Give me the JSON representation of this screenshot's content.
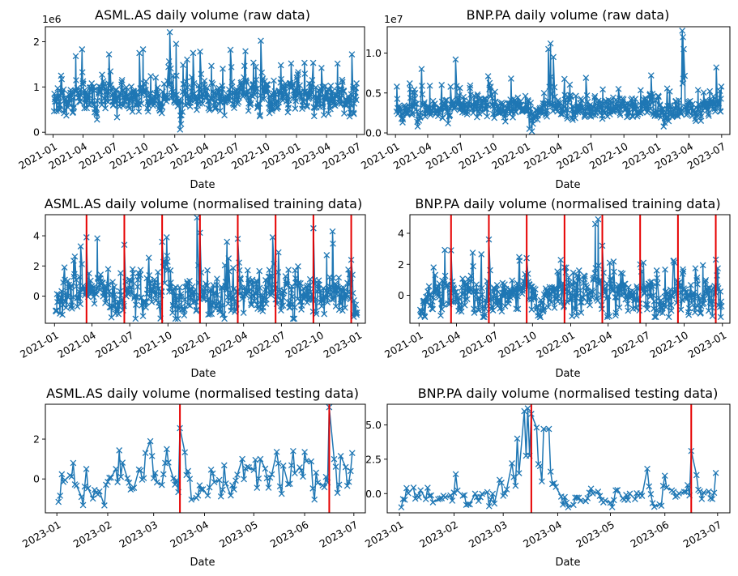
{
  "chart_data": [
    {
      "id": "p0",
      "type": "line",
      "title": "ASML.AS daily volume (raw data)",
      "xlabel": "Date",
      "ylabel": "",
      "multiplier": "1e6",
      "xlim": [
        "2020-12-09",
        "2023-07-24"
      ],
      "ylim": [
        -50000,
        2330000
      ],
      "yticks": [
        {
          "v": 0,
          "label": "0"
        },
        {
          "v": 1000000,
          "label": "1"
        },
        {
          "v": 2000000,
          "label": "2"
        }
      ],
      "xticks": [
        {
          "d": "2021-01-01",
          "label": "2021-01"
        },
        {
          "d": "2021-04-01",
          "label": "2021-04"
        },
        {
          "d": "2021-07-01",
          "label": "2021-07"
        },
        {
          "d": "2021-10-01",
          "label": "2021-10"
        },
        {
          "d": "2022-01-01",
          "label": "2022-01"
        },
        {
          "d": "2022-04-01",
          "label": "2022-04"
        },
        {
          "d": "2022-07-01",
          "label": "2022-07"
        },
        {
          "d": "2022-10-01",
          "label": "2022-10"
        },
        {
          "d": "2023-01-01",
          "label": "2023-01"
        },
        {
          "d": "2023-04-01",
          "label": "2023-04"
        },
        {
          "d": "2023-07-01",
          "label": "2023-07"
        }
      ],
      "vlines": [],
      "series": {
        "start": "2021-01-04",
        "end": "2023-06-30",
        "base": 750000,
        "noise": 200000,
        "floor": 280000,
        "ceil": 2250000,
        "seed": 11,
        "points": [
          {
            "d": "2021-01-05",
            "v": 850000
          },
          {
            "d": "2021-01-25",
            "v": 1250000
          },
          {
            "d": "2021-02-03",
            "v": 420000
          },
          {
            "d": "2021-03-10",
            "v": 1680000
          },
          {
            "d": "2021-03-29",
            "v": 1830000
          },
          {
            "d": "2021-05-28",
            "v": 1270000
          },
          {
            "d": "2021-06-18",
            "v": 1720000
          },
          {
            "d": "2021-07-12",
            "v": 330000
          },
          {
            "d": "2021-07-25",
            "v": 1050000
          },
          {
            "d": "2021-09-17",
            "v": 1750000
          },
          {
            "d": "2021-09-28",
            "v": 1830000
          },
          {
            "d": "2021-12-17",
            "v": 2210000
          },
          {
            "d": "2022-01-05",
            "v": 1950000
          },
          {
            "d": "2022-01-17",
            "v": 60000
          },
          {
            "d": "2022-01-20",
            "v": 180000
          },
          {
            "d": "2022-02-25",
            "v": 1750000
          },
          {
            "d": "2022-03-18",
            "v": 1780000
          },
          {
            "d": "2022-06-17",
            "v": 1820000
          },
          {
            "d": "2022-09-16",
            "v": 2020000
          },
          {
            "d": "2022-11-15",
            "v": 1480000
          },
          {
            "d": "2022-12-16",
            "v": 1520000
          },
          {
            "d": "2023-03-17",
            "v": 1420000
          },
          {
            "d": "2023-06-16",
            "v": 1720000
          },
          {
            "d": "2023-06-30",
            "v": 1080000
          }
        ]
      }
    },
    {
      "id": "p1",
      "type": "line",
      "title": "BNP.PA daily volume (raw data)",
      "xlabel": "Date",
      "ylabel": "",
      "multiplier": "1e7",
      "xlim": [
        "2020-12-09",
        "2023-07-24"
      ],
      "ylim": [
        -200000,
        13300000
      ],
      "yticks": [
        {
          "v": 0,
          "label": "0.0"
        },
        {
          "v": 5000000,
          "label": "0.5"
        },
        {
          "v": 10000000,
          "label": "1.0"
        }
      ],
      "xticks": [
        {
          "d": "2021-01-01",
          "label": "2021-01"
        },
        {
          "d": "2021-04-01",
          "label": "2021-04"
        },
        {
          "d": "2021-07-01",
          "label": "2021-07"
        },
        {
          "d": "2021-10-01",
          "label": "2021-10"
        },
        {
          "d": "2022-01-01",
          "label": "2022-01"
        },
        {
          "d": "2022-04-01",
          "label": "2022-04"
        },
        {
          "d": "2022-07-01",
          "label": "2022-07"
        },
        {
          "d": "2022-10-01",
          "label": "2022-10"
        },
        {
          "d": "2023-01-01",
          "label": "2023-01"
        },
        {
          "d": "2023-04-01",
          "label": "2023-04"
        },
        {
          "d": "2023-07-01",
          "label": "2023-07"
        }
      ],
      "vlines": [],
      "series": {
        "start": "2021-01-04",
        "end": "2023-06-30",
        "base": 3000000,
        "noise": 800000,
        "floor": 800000,
        "ceil": 13000000,
        "seed": 23,
        "points": [
          {
            "d": "2021-01-05",
            "v": 5800000
          },
          {
            "d": "2021-02-10",
            "v": 6200000
          },
          {
            "d": "2021-03-15",
            "v": 8000000
          },
          {
            "d": "2021-05-10",
            "v": 6000000
          },
          {
            "d": "2021-06-18",
            "v": 9200000
          },
          {
            "d": "2021-07-10",
            "v": 4500000
          },
          {
            "d": "2021-09-17",
            "v": 7100000
          },
          {
            "d": "2021-11-20",
            "v": 6800000
          },
          {
            "d": "2022-01-10",
            "v": 500000
          },
          {
            "d": "2022-01-17",
            "v": 200000
          },
          {
            "d": "2022-02-20",
            "v": 5000000
          },
          {
            "d": "2022-03-04",
            "v": 10500000
          },
          {
            "d": "2022-03-10",
            "v": 11200000
          },
          {
            "d": "2022-03-18",
            "v": 9500000
          },
          {
            "d": "2022-06-17",
            "v": 6900000
          },
          {
            "d": "2022-09-16",
            "v": 5500000
          },
          {
            "d": "2022-12-16",
            "v": 7200000
          },
          {
            "d": "2023-01-20",
            "v": 800000
          },
          {
            "d": "2023-03-13",
            "v": 12800000
          },
          {
            "d": "2023-03-15",
            "v": 12000000
          },
          {
            "d": "2023-03-17",
            "v": 10500000
          },
          {
            "d": "2023-06-16",
            "v": 8200000
          },
          {
            "d": "2023-06-30",
            "v": 5800000
          }
        ]
      }
    },
    {
      "id": "p2",
      "type": "line",
      "title": "ASML.AS daily volume (normalised training data)",
      "xlabel": "Date",
      "ylabel": "",
      "multiplier": "",
      "xlim": [
        "2020-12-10",
        "2023-01-19"
      ],
      "ylim": [
        -1.8,
        5.4
      ],
      "yticks": [
        {
          "v": 0,
          "label": "0"
        },
        {
          "v": 2,
          "label": "2"
        },
        {
          "v": 4,
          "label": "4"
        }
      ],
      "xticks": [
        {
          "d": "2021-01-01",
          "label": "2021-01"
        },
        {
          "d": "2021-04-01",
          "label": "2021-04"
        },
        {
          "d": "2021-07-01",
          "label": "2021-07"
        },
        {
          "d": "2021-10-01",
          "label": "2021-10"
        },
        {
          "d": "2022-01-01",
          "label": "2022-01"
        },
        {
          "d": "2022-04-01",
          "label": "2022-04"
        },
        {
          "d": "2022-07-01",
          "label": "2022-07"
        },
        {
          "d": "2022-10-01",
          "label": "2022-10"
        },
        {
          "d": "2023-01-01",
          "label": "2023-01"
        }
      ],
      "vlines": [
        "2021-03-19",
        "2021-06-18",
        "2021-09-17",
        "2021-12-17",
        "2022-03-18",
        "2022-06-17",
        "2022-09-16",
        "2022-12-16"
      ],
      "series": {
        "start": "2021-01-04",
        "end": "2022-12-30",
        "base": 0.1,
        "noise": 0.85,
        "floor": -1.5,
        "ceil": 5.3,
        "seed": 37,
        "points": [
          {
            "d": "2021-01-25",
            "v": 1.9
          },
          {
            "d": "2021-03-05",
            "v": 3.3
          },
          {
            "d": "2021-03-19",
            "v": 3.9
          },
          {
            "d": "2021-06-18",
            "v": 3.4
          },
          {
            "d": "2021-07-15",
            "v": -1.5
          },
          {
            "d": "2021-09-17",
            "v": 3.6
          },
          {
            "d": "2021-09-28",
            "v": 3.9
          },
          {
            "d": "2021-12-10",
            "v": 5.2
          },
          {
            "d": "2021-12-17",
            "v": 4.2
          },
          {
            "d": "2022-01-10",
            "v": -1.2
          },
          {
            "d": "2022-02-20",
            "v": 3.6
          },
          {
            "d": "2022-03-18",
            "v": 3.8
          },
          {
            "d": "2022-06-10",
            "v": 3.9
          },
          {
            "d": "2022-06-24",
            "v": 2.9
          },
          {
            "d": "2022-09-16",
            "v": 4.5
          },
          {
            "d": "2022-12-16",
            "v": 2.4
          },
          {
            "d": "2022-12-30",
            "v": -1.1
          }
        ]
      }
    },
    {
      "id": "p3",
      "type": "line",
      "title": "BNP.PA daily volume (normalised training data)",
      "xlabel": "Date",
      "ylabel": "",
      "multiplier": "",
      "xlim": [
        "2020-12-10",
        "2023-01-19"
      ],
      "ylim": [
        -1.8,
        5.2
      ],
      "yticks": [
        {
          "v": 0,
          "label": "0"
        },
        {
          "v": 2,
          "label": "2"
        },
        {
          "v": 4,
          "label": "4"
        }
      ],
      "xticks": [
        {
          "d": "2021-01-01",
          "label": "2021-01"
        },
        {
          "d": "2021-04-01",
          "label": "2021-04"
        },
        {
          "d": "2021-07-01",
          "label": "2021-07"
        },
        {
          "d": "2021-10-01",
          "label": "2021-10"
        },
        {
          "d": "2022-01-01",
          "label": "2022-01"
        },
        {
          "d": "2022-04-01",
          "label": "2022-04"
        },
        {
          "d": "2022-07-01",
          "label": "2022-07"
        },
        {
          "d": "2022-10-01",
          "label": "2022-10"
        },
        {
          "d": "2023-01-01",
          "label": "2023-01"
        }
      ],
      "vlines": [
        "2021-03-19",
        "2021-06-18",
        "2021-09-17",
        "2021-12-17",
        "2022-03-18",
        "2022-06-17",
        "2022-09-16",
        "2022-12-16"
      ],
      "series": {
        "start": "2021-01-04",
        "end": "2022-12-30",
        "base": 0.0,
        "noise": 0.75,
        "floor": -1.4,
        "ceil": 5.0,
        "seed": 53,
        "points": [
          {
            "d": "2021-02-05",
            "v": 1.8
          },
          {
            "d": "2021-03-19",
            "v": 2.9
          },
          {
            "d": "2021-06-18",
            "v": 3.6
          },
          {
            "d": "2021-09-17",
            "v": 2.4
          },
          {
            "d": "2021-12-17",
            "v": 1.8
          },
          {
            "d": "2022-01-15",
            "v": -1.3
          },
          {
            "d": "2022-03-01",
            "v": 4.6
          },
          {
            "d": "2022-03-08",
            "v": 4.9
          },
          {
            "d": "2022-03-18",
            "v": 3.2
          },
          {
            "d": "2022-04-05",
            "v": 2.1
          },
          {
            "d": "2022-06-17",
            "v": 2.0
          },
          {
            "d": "2022-06-25",
            "v": 2.1
          },
          {
            "d": "2022-09-16",
            "v": 0.8
          },
          {
            "d": "2022-12-16",
            "v": 2.3
          },
          {
            "d": "2022-12-28",
            "v": -1.4
          }
        ]
      }
    },
    {
      "id": "p4",
      "type": "line",
      "title": "ASML.AS daily volume (normalised testing data)",
      "xlabel": "Date",
      "ylabel": "",
      "multiplier": "",
      "xlim": [
        "2022-12-25",
        "2023-07-08"
      ],
      "ylim": [
        -1.7,
        3.75
      ],
      "yticks": [
        {
          "v": 0,
          "label": "0"
        },
        {
          "v": 2,
          "label": "2"
        }
      ],
      "xticks": [
        {
          "d": "2023-01-01",
          "label": "2023-01"
        },
        {
          "d": "2023-02-01",
          "label": "2023-02"
        },
        {
          "d": "2023-03-01",
          "label": "2023-03"
        },
        {
          "d": "2023-04-01",
          "label": "2023-04"
        },
        {
          "d": "2023-05-01",
          "label": "2023-05"
        },
        {
          "d": "2023-06-01",
          "label": "2023-06"
        },
        {
          "d": "2023-07-01",
          "label": "2023-07"
        }
      ],
      "vlines": [
        "2023-03-17",
        "2023-06-16"
      ],
      "series": {
        "start": "2023-01-02",
        "end": "2023-06-30",
        "base": -0.2,
        "noise": 0.55,
        "floor": -1.45,
        "ceil": 3.7,
        "seed": 71,
        "points": [
          {
            "d": "2023-01-02",
            "v": -1.15
          },
          {
            "d": "2023-01-11",
            "v": 0.8
          },
          {
            "d": "2023-02-06",
            "v": 0.5
          },
          {
            "d": "2023-02-24",
            "v": 1.3
          },
          {
            "d": "2023-03-08",
            "v": 0.8
          },
          {
            "d": "2023-03-17",
            "v": 2.55
          },
          {
            "d": "2023-03-22",
            "v": 0.4
          },
          {
            "d": "2023-04-24",
            "v": 1.0
          },
          {
            "d": "2023-05-05",
            "v": 1.0
          },
          {
            "d": "2023-05-25",
            "v": 1.4
          },
          {
            "d": "2023-06-01",
            "v": 1.35
          },
          {
            "d": "2023-06-16",
            "v": 3.6
          },
          {
            "d": "2023-06-21",
            "v": -0.7
          },
          {
            "d": "2023-06-30",
            "v": 1.3
          }
        ]
      }
    },
    {
      "id": "p5",
      "type": "line",
      "title": "BNP.PA daily volume (normalised testing data)",
      "xlabel": "Date",
      "ylabel": "",
      "multiplier": "",
      "xlim": [
        "2022-12-25",
        "2023-07-08"
      ],
      "ylim": [
        -1.4,
        6.5
      ],
      "yticks": [
        {
          "v": 0,
          "label": "0.0"
        },
        {
          "v": 2.5,
          "label": "2.5"
        },
        {
          "v": 5,
          "label": "5.0"
        }
      ],
      "xticks": [
        {
          "d": "2023-01-01",
          "label": "2023-01"
        },
        {
          "d": "2023-02-01",
          "label": "2023-02"
        },
        {
          "d": "2023-03-01",
          "label": "2023-03"
        },
        {
          "d": "2023-04-01",
          "label": "2023-04"
        },
        {
          "d": "2023-05-01",
          "label": "2023-05"
        },
        {
          "d": "2023-06-01",
          "label": "2023-06"
        },
        {
          "d": "2023-07-01",
          "label": "2023-07"
        }
      ],
      "vlines": [
        "2023-03-17",
        "2023-06-16"
      ],
      "series": {
        "start": "2023-01-02",
        "end": "2023-06-30",
        "base": -0.3,
        "noise": 0.45,
        "floor": -1.0,
        "ceil": 6.3,
        "seed": 89,
        "points": [
          {
            "d": "2023-01-02",
            "v": -1.0
          },
          {
            "d": "2023-01-05",
            "v": 0.4
          },
          {
            "d": "2023-02-27",
            "v": 1.0
          },
          {
            "d": "2023-03-06",
            "v": 2.2
          },
          {
            "d": "2023-03-09",
            "v": 4.0
          },
          {
            "d": "2023-03-13",
            "v": 6.0
          },
          {
            "d": "2023-03-15",
            "v": 6.2
          },
          {
            "d": "2023-03-17",
            "v": 5.8
          },
          {
            "d": "2023-03-20",
            "v": 4.8
          },
          {
            "d": "2023-03-22",
            "v": 2.0
          },
          {
            "d": "2023-03-24",
            "v": 4.7
          },
          {
            "d": "2023-03-27",
            "v": 4.7
          },
          {
            "d": "2023-03-29",
            "v": 0.7
          },
          {
            "d": "2023-05-22",
            "v": 1.8
          },
          {
            "d": "2023-06-01",
            "v": 1.3
          },
          {
            "d": "2023-06-16",
            "v": 3.1
          },
          {
            "d": "2023-06-30",
            "v": 1.5
          }
        ]
      }
    }
  ]
}
